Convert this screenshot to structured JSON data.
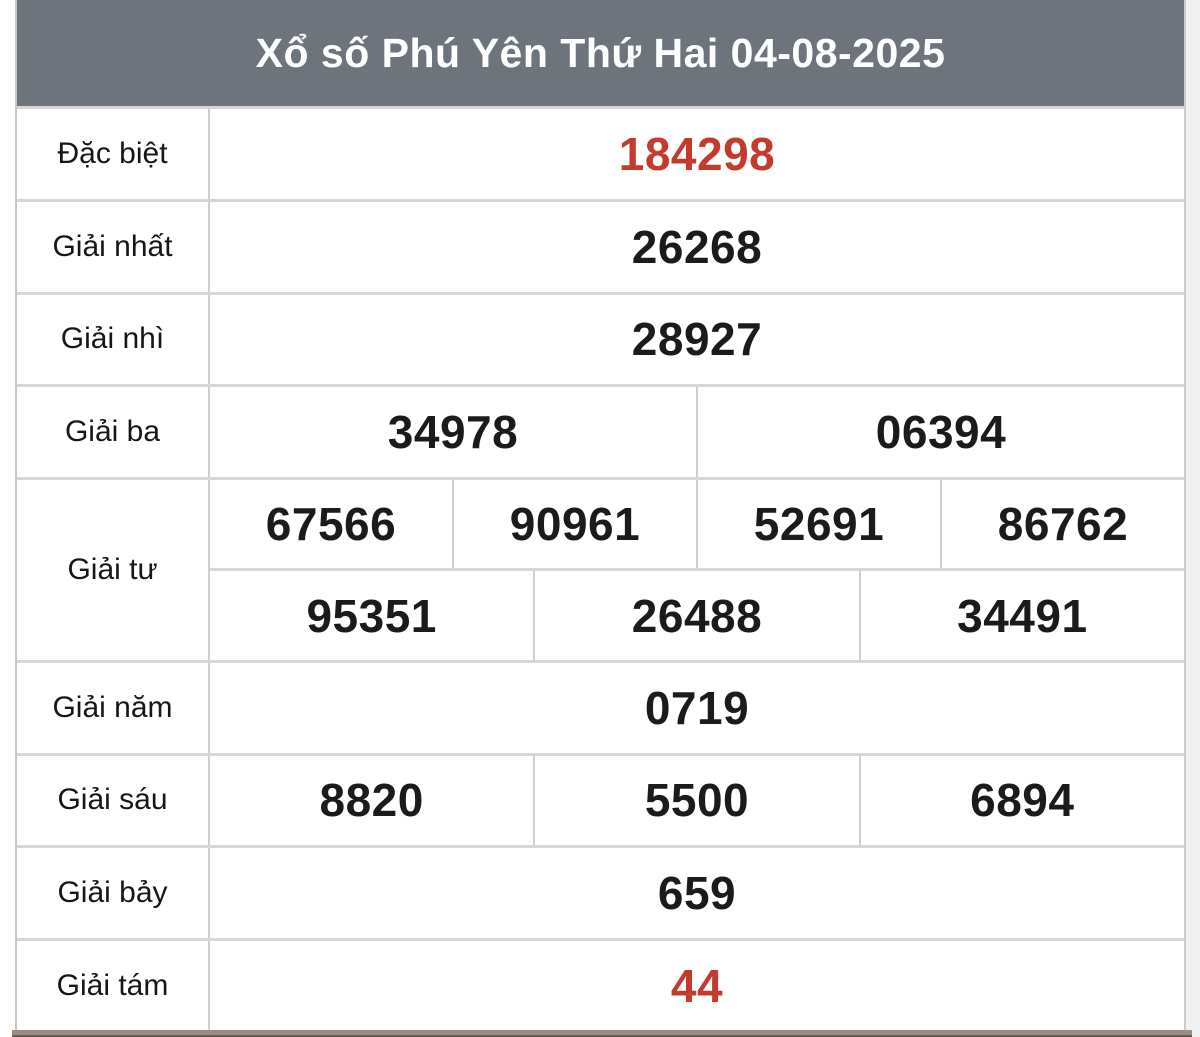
{
  "header": {
    "title": "Xổ số Phú Yên Thứ Hai 04-08-2025"
  },
  "colors": {
    "header_bg": "#6d747c",
    "header_text": "#ffffff",
    "accent_red": "#c43a2c",
    "number_black": "#1b1b1b",
    "border_gray": "#cfcfcf",
    "bottom_bar": "#9c8d84"
  },
  "prizes": [
    {
      "key": "dac-biet",
      "label": "Đặc biệt",
      "accent": true,
      "groups": [
        [
          "184298"
        ]
      ]
    },
    {
      "key": "giai-nhat",
      "label": "Giải nhất",
      "accent": false,
      "groups": [
        [
          "26268"
        ]
      ]
    },
    {
      "key": "giai-nhi",
      "label": "Giải nhì",
      "accent": false,
      "groups": [
        [
          "28927"
        ]
      ]
    },
    {
      "key": "giai-ba",
      "label": "Giải ba",
      "accent": false,
      "groups": [
        [
          "34978",
          "06394"
        ]
      ]
    },
    {
      "key": "giai-tu",
      "label": "Giải tư",
      "accent": false,
      "groups": [
        [
          "67566",
          "90961",
          "52691",
          "86762"
        ],
        [
          "95351",
          "26488",
          "34491"
        ]
      ]
    },
    {
      "key": "giai-nam",
      "label": "Giải năm",
      "accent": false,
      "groups": [
        [
          "0719"
        ]
      ]
    },
    {
      "key": "giai-sau",
      "label": "Giải sáu",
      "accent": false,
      "groups": [
        [
          "8820",
          "5500",
          "6894"
        ]
      ]
    },
    {
      "key": "giai-bay",
      "label": "Giải bảy",
      "accent": false,
      "groups": [
        [
          "659"
        ]
      ]
    },
    {
      "key": "giai-tam",
      "label": "Giải tám",
      "accent": true,
      "groups": [
        [
          "44"
        ]
      ]
    }
  ]
}
